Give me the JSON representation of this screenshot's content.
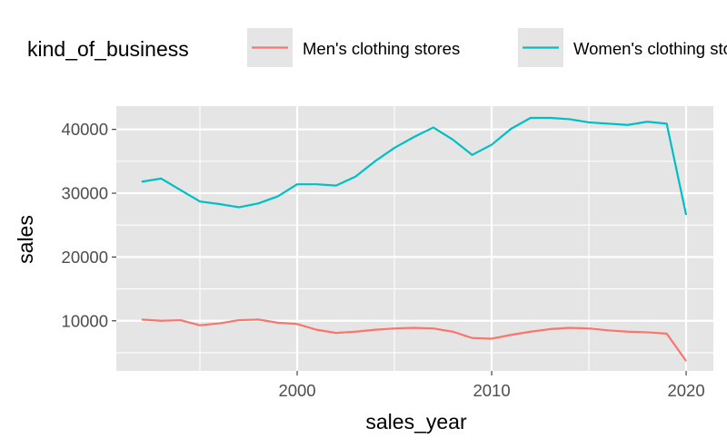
{
  "chart_data": {
    "type": "line",
    "xlabel": "sales_year",
    "ylabel": "sales",
    "xlim": [
      1990.7,
      2021.4
    ],
    "ylim": [
      2150,
      43650
    ],
    "x_ticks": [
      2000,
      2010,
      2020
    ],
    "y_ticks": [
      10000,
      20000,
      30000,
      40000
    ],
    "grid": true,
    "legend_position": "top",
    "legend_title": "kind_of_business",
    "colors": {
      "panel": "#E5E5E5",
      "grid": "#FFFFFF",
      "axis_text": "#4D4D4D"
    },
    "series": [
      {
        "name": "Men's clothing stores",
        "color": "#F8766D",
        "x": [
          1992,
          1993,
          1994,
          1995,
          1996,
          1997,
          1998,
          1999,
          2000,
          2001,
          2002,
          2003,
          2004,
          2005,
          2006,
          2007,
          2008,
          2009,
          2010,
          2011,
          2012,
          2013,
          2014,
          2015,
          2016,
          2017,
          2018,
          2019,
          2020
        ],
        "y": [
          10200,
          10000,
          10100,
          9300,
          9600,
          10100,
          10200,
          9700,
          9500,
          8600,
          8100,
          8300,
          8600,
          8800,
          8900,
          8800,
          8300,
          7300,
          7200,
          7800,
          8300,
          8700,
          8900,
          8800,
          8500,
          8300,
          8200,
          8000,
          3700
        ]
      },
      {
        "name": "Women's clothing stores",
        "color": "#00BFC4",
        "x": [
          1992,
          1993,
          1994,
          1995,
          1996,
          1997,
          1998,
          1999,
          2000,
          2001,
          2002,
          2003,
          2004,
          2005,
          2006,
          2007,
          2008,
          2009,
          2010,
          2011,
          2012,
          2013,
          2014,
          2015,
          2016,
          2017,
          2018,
          2019,
          2020
        ],
        "y": [
          31800,
          32300,
          30500,
          28700,
          28300,
          27800,
          28400,
          29500,
          31400,
          31400,
          31200,
          32600,
          35000,
          37100,
          38800,
          40300,
          38400,
          36000,
          37600,
          40100,
          41800,
          41800,
          41600,
          41100,
          40900,
          40700,
          41200,
          40900,
          26600
        ]
      }
    ]
  }
}
